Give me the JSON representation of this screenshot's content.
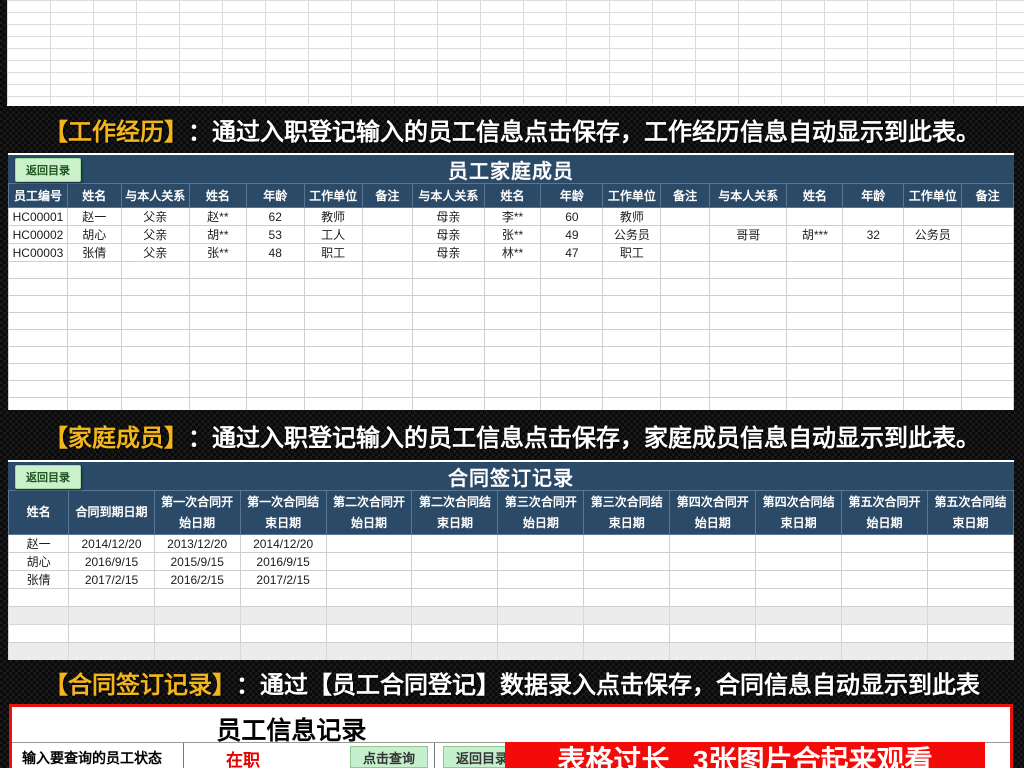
{
  "banners": {
    "b1": {
      "tag": "【工作经历】",
      "text": "：通过入职登记输入的员工信息点击保存，工作经历信息自动显示到此表。"
    },
    "b2": {
      "tag": "【家庭成员】",
      "text": "：通过入职登记输入的员工信息点击保存，家庭成员信息自动显示到此表。"
    },
    "b3": {
      "tag": "【合同签订记录】",
      "text": "：通过【员工合同登记】数据录入点击保存，合同信息自动显示到此表"
    }
  },
  "family_table": {
    "back_button": "返回目录",
    "title": "员工家庭成员",
    "headers": [
      "员工编号",
      "姓名",
      "与本人关系",
      "姓名",
      "年龄",
      "工作单位",
      "备注",
      "与本人关系",
      "姓名",
      "年龄",
      "工作单位",
      "备注",
      "与本人关系",
      "姓名",
      "年龄",
      "工作单位",
      "备注"
    ],
    "rows": [
      [
        "HC00001",
        "赵一",
        "父亲",
        "赵**",
        "62",
        "教师",
        "",
        "母亲",
        "李**",
        "60",
        "教师",
        "",
        "",
        "",
        "",
        "",
        ""
      ],
      [
        "HC00002",
        "胡心",
        "父亲",
        "胡**",
        "53",
        "工人",
        "",
        "母亲",
        "张**",
        "49",
        "公务员",
        "",
        "哥哥",
        "胡***",
        "32",
        "公务员",
        ""
      ],
      [
        "HC00003",
        "张倩",
        "父亲",
        "张**",
        "48",
        "职工",
        "",
        "母亲",
        "林**",
        "47",
        "职工",
        "",
        "",
        "",
        "",
        "",
        ""
      ]
    ]
  },
  "contract_table": {
    "back_button": "返回目录",
    "title": "合同签订记录",
    "headers": [
      "姓名",
      "合同到期日期",
      "第一次合同开始日期",
      "第一次合同结束日期",
      "第二次合同开始日期",
      "第二次合同结束日期",
      "第三次合同开始日期",
      "第三次合同结束日期",
      "第四次合同开始日期",
      "第四次合同结束日期",
      "第五次合同开始日期",
      "第五次合同结束日期"
    ],
    "rows": [
      [
        "赵一",
        "2014/12/20",
        "2013/12/20",
        "2014/12/20",
        "",
        "",
        "",
        "",
        "",
        "",
        "",
        ""
      ],
      [
        "胡心",
        "2016/9/15",
        "2015/9/15",
        "2016/9/15",
        "",
        "",
        "",
        "",
        "",
        "",
        "",
        ""
      ],
      [
        "张倩",
        "2017/2/15",
        "2016/2/15",
        "2017/2/15",
        "",
        "",
        "",
        "",
        "",
        "",
        "",
        ""
      ]
    ]
  },
  "bottom_panel": {
    "title": "员工信息记录",
    "query_label": "输入要查询的员工状态",
    "status_value": "在职",
    "query_button": "点击查询",
    "back_button": "返回目录",
    "overlay_note": "表格过长   3张图片合起来观看"
  },
  "colors": {
    "header_blue": "#2b4a68",
    "banner_yellow": "#f2b51c",
    "button_green": "#c6efce",
    "alert_red": "#f50a0a",
    "status_red": "#e60000"
  }
}
